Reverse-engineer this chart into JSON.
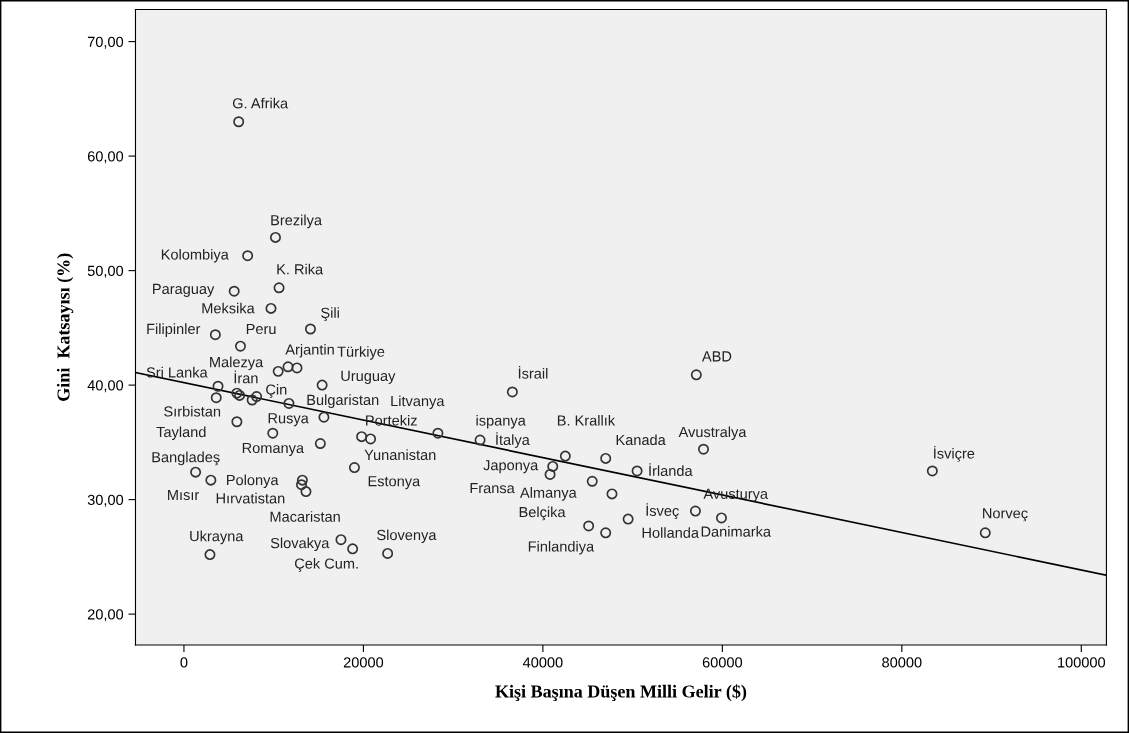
{
  "chart_data": {
    "type": "scatter",
    "xlabel": "Kişi Başına Düşen Milli Gelir ($)",
    "ylabel": "Gini  Katsayısı (%)",
    "xlim": [
      -5400,
      102800
    ],
    "ylim": [
      17.3,
      72.8
    ],
    "xticks": [
      0,
      20000,
      40000,
      60000,
      80000,
      100000
    ],
    "yticks": [
      {
        "value": 20,
        "label": "20,00"
      },
      {
        "value": 30,
        "label": "30,00"
      },
      {
        "value": 40,
        "label": "40,00"
      },
      {
        "value": 50,
        "label": "50,00"
      },
      {
        "value": 60,
        "label": "60,00"
      },
      {
        "value": 70,
        "label": "70,00"
      }
    ],
    "grid": false,
    "legend": false,
    "series": [
      {
        "marker": "circle",
        "color": "#333333",
        "x": [
          6100,
          10200,
          7100,
          10600,
          5600,
          9700,
          14100,
          3500,
          6300,
          11600,
          12600,
          10500,
          15400,
          3800,
          3600,
          5900,
          6200,
          7600,
          8100,
          11700,
          5900,
          15600,
          9900,
          19800,
          20800,
          15200,
          19000,
          1300,
          3000,
          13200,
          13100,
          13600,
          17500,
          18800,
          22700,
          2900,
          36600,
          57100,
          28300,
          33000,
          42500,
          47000,
          57900,
          41100,
          40800,
          50500,
          45500,
          47700,
          57000,
          49500,
          59900,
          45100,
          47000,
          83400,
          89300
        ],
        "values": [
          63.0,
          52.9,
          51.3,
          48.5,
          48.2,
          46.7,
          44.9,
          44.4,
          43.4,
          41.6,
          41.5,
          41.2,
          40.0,
          39.9,
          38.9,
          39.3,
          39.1,
          38.7,
          39.0,
          38.4,
          36.8,
          37.2,
          35.8,
          35.5,
          35.3,
          34.9,
          32.8,
          32.4,
          31.7,
          31.7,
          31.3,
          30.7,
          26.5,
          25.7,
          25.3,
          25.2,
          39.4,
          40.9,
          35.8,
          35.2,
          33.8,
          33.6,
          34.4,
          32.9,
          32.2,
          32.5,
          31.6,
          30.5,
          29.0,
          28.3,
          28.4,
          27.7,
          27.1,
          32.5,
          27.1
        ]
      },
      {
        "type": "line",
        "color": "#000000",
        "x": [
          -5400,
          102800
        ],
        "values": [
          41.1,
          23.4
        ]
      }
    ],
    "annotations": [
      {
        "text": "G. Afrika",
        "x": 6100,
        "y": 63.0
      },
      {
        "text": "Brezilya",
        "x": 10200,
        "y": 52.9
      },
      {
        "text": "Kolombiya",
        "x": 7100,
        "y": 51.3
      },
      {
        "text": "K. Rika",
        "x": 10600,
        "y": 48.5
      },
      {
        "text": "Paraguay",
        "x": 5600,
        "y": 48.2
      },
      {
        "text": "Meksika",
        "x": 9700,
        "y": 46.7
      },
      {
        "text": "Şili",
        "x": 14100,
        "y": 44.9
      },
      {
        "text": "Filipinler",
        "x": 3500,
        "y": 44.4
      },
      {
        "text": "Peru",
        "x": 6300,
        "y": 43.4
      },
      {
        "text": "Arjantin",
        "x": 11600,
        "y": 41.6
      },
      {
        "text": "Türkiye",
        "x": 12600,
        "y": 41.5
      },
      {
        "text": "Malezya",
        "x": 10500,
        "y": 41.2
      },
      {
        "text": "Sri Lanka",
        "x": 3800,
        "y": 39.9
      },
      {
        "text": "İran",
        "x": 5900,
        "y": 39.3
      },
      {
        "text": "Çin",
        "x": 8100,
        "y": 39.0
      },
      {
        "text": "Uruguay",
        "x": 15400,
        "y": 40.0
      },
      {
        "text": "Bulgaristan",
        "x": 11700,
        "y": 38.4
      },
      {
        "text": "Litvanya",
        "x": 28300,
        "y": 35.8
      },
      {
        "text": "Sırbistan",
        "x": 3600,
        "y": 38.9
      },
      {
        "text": "Rusya",
        "x": 15600,
        "y": 37.2
      },
      {
        "text": "Portekiz",
        "x": 19800,
        "y": 35.5
      },
      {
        "text": "Tayland",
        "x": 5900,
        "y": 36.8
      },
      {
        "text": "Romanya",
        "x": 15200,
        "y": 34.9
      },
      {
        "text": "Yunanistan",
        "x": 20800,
        "y": 35.3
      },
      {
        "text": "Bangladeş",
        "x": 1300,
        "y": 32.4
      },
      {
        "text": "Estonya",
        "x": 19000,
        "y": 32.8
      },
      {
        "text": "Polonya",
        "x": 13200,
        "y": 31.7
      },
      {
        "text": "Mısır",
        "x": 3000,
        "y": 31.7
      },
      {
        "text": "Hırvatistan",
        "x": 13600,
        "y": 30.7
      },
      {
        "text": "Macaristan",
        "x": 13100,
        "y": 31.3
      },
      {
        "text": "Ukrayna",
        "x": 2900,
        "y": 25.2
      },
      {
        "text": "Slovakya",
        "x": 17500,
        "y": 26.5
      },
      {
        "text": "Slovenya",
        "x": 22700,
        "y": 25.3
      },
      {
        "text": "Çek Cum.",
        "x": 18800,
        "y": 25.7
      },
      {
        "text": "İsrail",
        "x": 36600,
        "y": 39.4
      },
      {
        "text": "ABD",
        "x": 57100,
        "y": 40.9
      },
      {
        "text": "ispanya",
        "x": 33000,
        "y": 35.2
      },
      {
        "text": "B. Krallık",
        "x": 42500,
        "y": 33.8
      },
      {
        "text": "İtalya",
        "x": 33000,
        "y": 35.2
      },
      {
        "text": "Kanada",
        "x": 47000,
        "y": 33.6
      },
      {
        "text": "Avustralya",
        "x": 57900,
        "y": 34.4
      },
      {
        "text": "Japonya",
        "x": 41100,
        "y": 32.9
      },
      {
        "text": "İrlanda",
        "x": 50500,
        "y": 32.5
      },
      {
        "text": "Fransa",
        "x": 40800,
        "y": 32.2
      },
      {
        "text": "Almanya",
        "x": 45500,
        "y": 31.6
      },
      {
        "text": "Avusturya",
        "x": 57000,
        "y": 29.0
      },
      {
        "text": "Belçika",
        "x": 45100,
        "y": 27.7
      },
      {
        "text": "İsveç",
        "x": 57000,
        "y": 29.0
      },
      {
        "text": "Hollanda",
        "x": 49500,
        "y": 28.3
      },
      {
        "text": "Danimarka",
        "x": 59900,
        "y": 28.4
      },
      {
        "text": "Finlandiya",
        "x": 47000,
        "y": 27.1
      },
      {
        "text": "İsviçre",
        "x": 83400,
        "y": 32.5
      },
      {
        "text": "Norveç",
        "x": 89300,
        "y": 27.1
      }
    ]
  }
}
